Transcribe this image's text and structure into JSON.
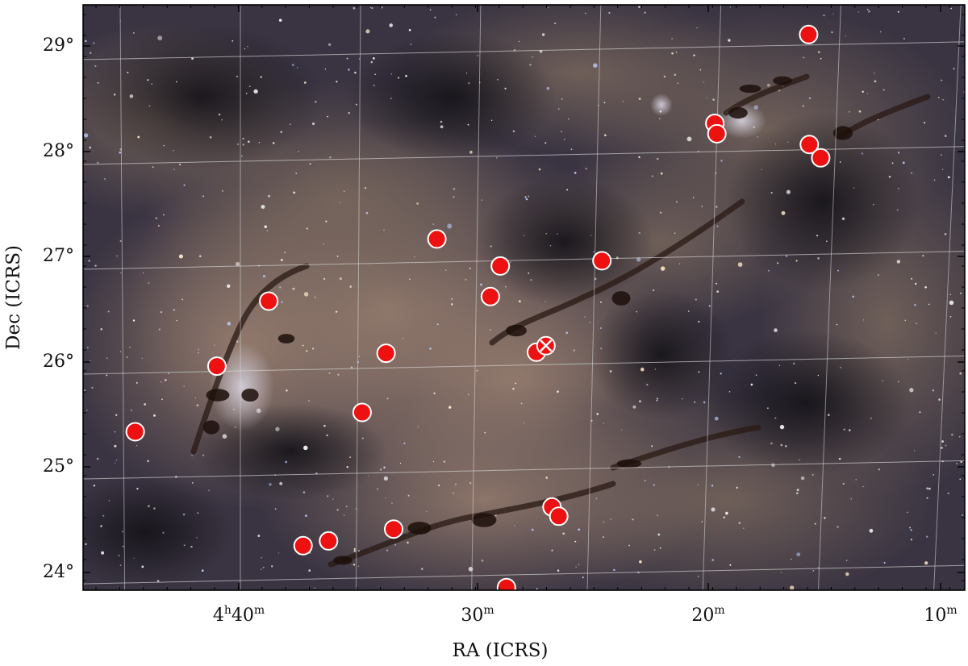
{
  "figure": {
    "image_alt": "Taurus molecular cloud sky image with marked sources",
    "x_axis": {
      "title": "RA (ICRS)",
      "tick_labels": [
        {
          "main": "4",
          "h": "h",
          "min": "40",
          "m": "m"
        },
        {
          "main": "30",
          "m": "m"
        },
        {
          "main": "20",
          "m": "m"
        },
        {
          "main": "10",
          "m": "m"
        }
      ]
    },
    "y_axis": {
      "title": "Dec (ICRS)",
      "tick_labels": [
        "29°",
        "28°",
        "27°",
        "26°",
        "25°",
        "24°"
      ]
    },
    "marker_color": "#ee1111",
    "marker_edge": "#ffffff",
    "background_palette": [
      "#3a3644",
      "#6e6058",
      "#241f26",
      "#8a7566",
      "#1a1514"
    ],
    "sources": [
      {
        "ra_min": 16.3,
        "dec": 29.1,
        "type": "circle"
      },
      {
        "ra_min": 20.1,
        "dec": 28.27,
        "type": "circle"
      },
      {
        "ra_min": 20.0,
        "dec": 28.17,
        "type": "circle"
      },
      {
        "ra_min": 16.1,
        "dec": 28.05,
        "type": "circle"
      },
      {
        "ra_min": 15.6,
        "dec": 27.92,
        "type": "circle"
      },
      {
        "ra_min": 31.7,
        "dec": 27.22,
        "type": "circle"
      },
      {
        "ra_min": 24.7,
        "dec": 26.98,
        "type": "circle"
      },
      {
        "ra_min": 29.0,
        "dec": 26.95,
        "type": "circle"
      },
      {
        "ra_min": 38.8,
        "dec": 26.66,
        "type": "circle"
      },
      {
        "ra_min": 29.4,
        "dec": 26.66,
        "type": "circle"
      },
      {
        "ra_min": 33.8,
        "dec": 26.14,
        "type": "circle"
      },
      {
        "ra_min": 27.4,
        "dec": 26.12,
        "type": "circle"
      },
      {
        "ra_min": 27.0,
        "dec": 26.18,
        "type": "cross"
      },
      {
        "ra_min": 41.0,
        "dec": 26.05,
        "type": "circle"
      },
      {
        "ra_min": 34.8,
        "dec": 25.58,
        "type": "circle"
      },
      {
        "ra_min": 44.5,
        "dec": 25.44,
        "type": "circle"
      },
      {
        "ra_min": 26.6,
        "dec": 24.64,
        "type": "circle"
      },
      {
        "ra_min": 26.3,
        "dec": 24.55,
        "type": "circle"
      },
      {
        "ra_min": 33.4,
        "dec": 24.46,
        "type": "circle"
      },
      {
        "ra_min": 36.2,
        "dec": 24.36,
        "type": "circle"
      },
      {
        "ra_min": 37.3,
        "dec": 24.32,
        "type": "circle"
      },
      {
        "ra_min": 28.5,
        "dec": 23.88,
        "type": "circle"
      }
    ]
  }
}
